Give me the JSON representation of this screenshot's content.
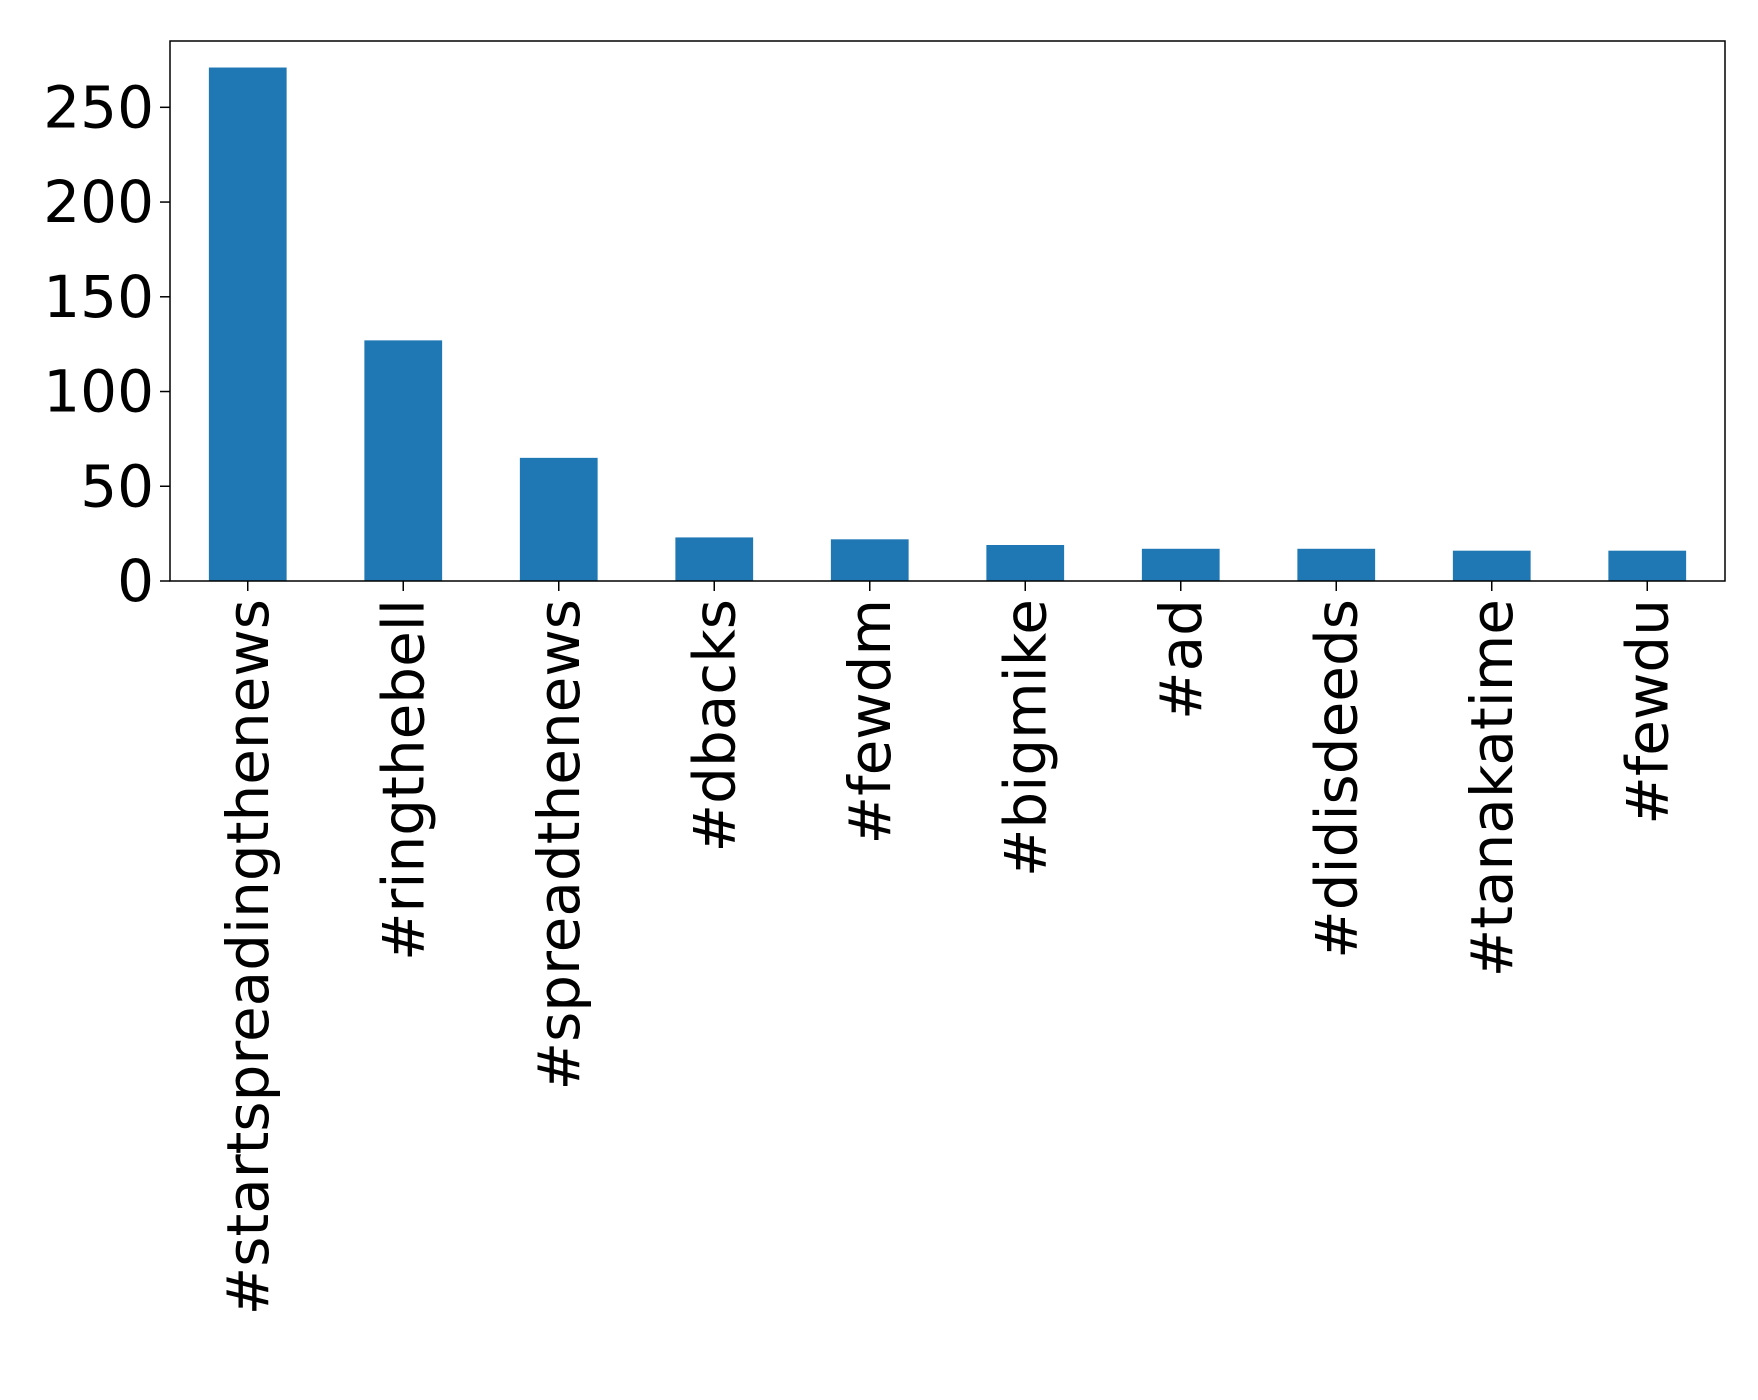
{
  "chart_data": {
    "type": "bar",
    "title": "",
    "xlabel": "",
    "ylabel": "",
    "categories": [
      "#startspreadingthenews",
      "#ringthebell",
      "#spreadthenews",
      "#dbacks",
      "#fewdm",
      "#bigmike",
      "#ad",
      "#didisdeeds",
      "#tanakatime",
      "#fewdu"
    ],
    "values": [
      271,
      127,
      65,
      23,
      22,
      19,
      17,
      17,
      16,
      16
    ],
    "ylim": [
      0,
      285
    ],
    "yticks": [
      0,
      50,
      100,
      150,
      200,
      250
    ],
    "bar_color": "#1f77b4",
    "grid": false
  }
}
